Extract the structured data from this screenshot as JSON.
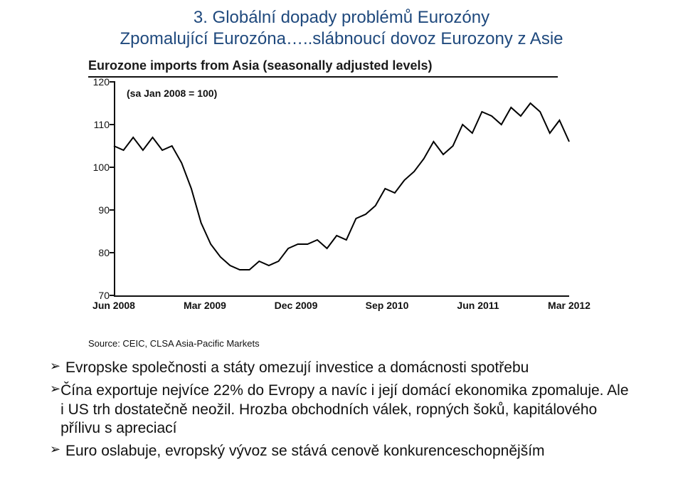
{
  "title": {
    "line1": "3. Globální dopady problémů Eurozóny",
    "line2": "Zpomalující Eurozóna…..slábnoucí dovoz Eurozony z Asie",
    "color": "#1f497d",
    "fontsize": 24
  },
  "chart": {
    "type": "line",
    "title": "Eurozone imports from Asia (seasonally adjusted levels)",
    "note": "(sa Jan 2008 = 100)",
    "source": "Source: CEIC, CLSA Asia-Pacific Markets",
    "title_fontsize": 18,
    "label_fontsize": 14,
    "background_color": "#ffffff",
    "axis_color": "#111111",
    "line_color": "#000000",
    "line_width": 2,
    "ylim": [
      70,
      120
    ],
    "ytick_step": 10,
    "yticks": [
      70,
      80,
      90,
      100,
      110,
      120
    ],
    "x_categories": [
      "Jun 2008",
      "Mar 2009",
      "Dec 2009",
      "Sep 2010",
      "Jun 2011",
      "Mar 2012"
    ],
    "series": {
      "name": "Eurozone imports from Asia",
      "values": [
        105,
        104,
        107,
        104,
        107,
        104,
        105,
        101,
        95,
        87,
        82,
        79,
        77,
        76,
        76,
        78,
        77,
        78,
        81,
        82,
        82,
        83,
        81,
        84,
        83,
        88,
        89,
        91,
        95,
        94,
        97,
        99,
        102,
        106,
        103,
        105,
        110,
        108,
        113,
        112,
        110,
        114,
        112,
        115,
        113,
        108,
        111,
        106
      ]
    }
  },
  "bullets": {
    "glyph": "➢",
    "items": [
      "Evropske společnosti a státy omezují investice a domácnosti spotřebu",
      "Čína exportuje nejvíce 22% do Evropy a navíc i její domácí ekonomika zpomaluje. Ale i US trh dostatečně neožil. Hrozba obchodních válek, ropných šoků, kapitálového přílivu s apreciací",
      "Euro oslabuje, evropský vývoz se stává cenově konkurenceschopnějším"
    ],
    "fontsize": 21,
    "color": "#111111"
  }
}
